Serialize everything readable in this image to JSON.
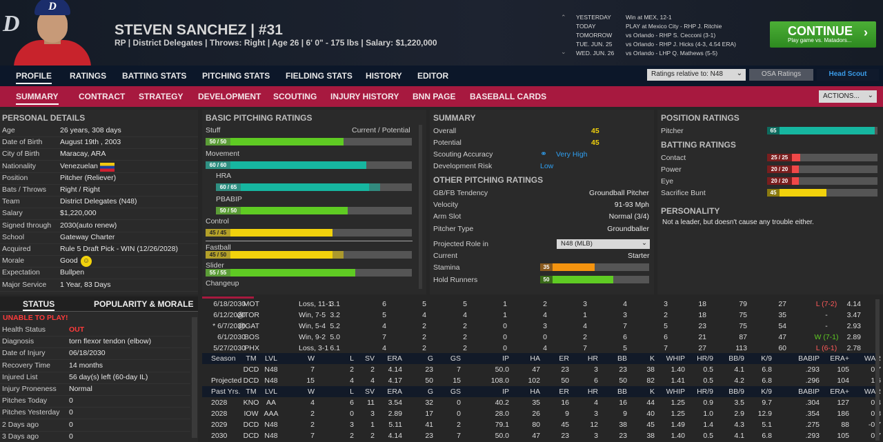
{
  "header": {
    "logo": "D",
    "cap_letter": "D",
    "name": "STEVEN SANCHEZ  |  #31",
    "subtitle": "RP | District Delegates | Throws: Right | Age 26 | 6' 0\" - 175 lbs | Salary: $1,220,000",
    "schedule": [
      {
        "day": "YESTERDAY",
        "text": "Win at MEX, 12-1"
      },
      {
        "day": "TODAY",
        "text": "PLAY at Mexico City - RHP J. Ritchie"
      },
      {
        "day": "TOMORROW",
        "text": "vs Orlando - RHP S. Cecconi (3-1)"
      },
      {
        "day": "TUE. JUN. 25",
        "text": "vs Orlando - RHP J. Hicks (4-3, 4.54 ERA)"
      },
      {
        "day": "WED. JUN. 26",
        "text": "vs Orlando - LHP Q. Mathews (5-5)"
      }
    ],
    "continue_label": "CONTINUE",
    "continue_sub": "Play game vs. Matadors...",
    "continue_color": "#3a9c2a"
  },
  "nav_main": {
    "tabs": [
      "PROFILE",
      "RATINGS",
      "BATTING STATS",
      "PITCHING STATS",
      "FIELDING STATS",
      "HISTORY",
      "EDITOR"
    ],
    "active": "PROFILE",
    "ratings_relative": "Ratings relative to: N48",
    "osa": "OSA Ratings",
    "head_scout": "Head Scout"
  },
  "nav_sub": {
    "tabs": [
      "SUMMARY",
      "CONTRACT",
      "STRATEGY",
      "DEVELOPMENT",
      "SCOUTING",
      "INJURY HISTORY",
      "BNN PAGE",
      "BASEBALL CARDS"
    ],
    "active": "SUMMARY",
    "actions": "ACTIONS...",
    "accent": "#a7193f"
  },
  "personal": {
    "title": "PERSONAL DETAILS",
    "rows": [
      {
        "label": "Age",
        "value": "26 years, 308 days"
      },
      {
        "label": "Date of Birth",
        "value": "August 19th , 2003"
      },
      {
        "label": "City of Birth",
        "value": "Maracay, ARA"
      },
      {
        "label": "Nationality",
        "value": "Venezuelan"
      },
      {
        "label": "Position",
        "value": "Pitcher (Reliever)"
      },
      {
        "label": "Bats / Throws",
        "value": "Right / Right"
      },
      {
        "label": "Team",
        "value": "District Delegates (N48)"
      },
      {
        "label": "Salary",
        "value": "$1,220,000"
      },
      {
        "label": "Signed through",
        "value": "2030(auto renew)"
      },
      {
        "label": "School",
        "value": "Gateway Charter"
      },
      {
        "label": "Acquired",
        "value": "Rule 5 Draft Pick - WIN (12/26/2028)"
      },
      {
        "label": "Morale",
        "value": "Good"
      },
      {
        "label": "Expectation",
        "value": "Bullpen"
      },
      {
        "label": "Major Service",
        "value": "1 Year, 83 Days"
      }
    ]
  },
  "status": {
    "tab_status": "STATUS",
    "tab_popularity": "POPULARITY & MORALE",
    "alert": "UNABLE TO PLAY!",
    "rows": [
      {
        "label": "Health Status",
        "value": "OUT"
      },
      {
        "label": "Diagnosis",
        "value": "torn flexor tendon (elbow)"
      },
      {
        "label": "Date of Injury",
        "value": "06/18/2030"
      },
      {
        "label": "Recovery Time",
        "value": "14 months"
      },
      {
        "label": "Injured List",
        "value": "56 day(s) left (60-day IL)"
      },
      {
        "label": "Injury Proneness",
        "value": "Normal"
      },
      {
        "label": "Pitches Today",
        "value": "0"
      },
      {
        "label": "Pitches Yesterday",
        "value": "0"
      },
      {
        "label": "2 Days ago",
        "value": "0"
      },
      {
        "label": "3 Days ago",
        "value": "0"
      }
    ]
  },
  "basic_pitching": {
    "title": "BASIC PITCHING RATINGS",
    "cur_pot_label": "Current / Potential",
    "ratings": [
      {
        "name": "Stuff",
        "label": "50 / 50",
        "current": 50,
        "potential": 50,
        "color": "#5fcb23"
      },
      {
        "name": "Movement",
        "label": "60 / 60",
        "current": 60,
        "potential": 60,
        "color": "#16b6a0"
      },
      {
        "name": "HRA",
        "label": "60 / 65",
        "current": 60,
        "potential": 65,
        "color": "#16b6a0"
      },
      {
        "name": "PBABIP",
        "label": "50 / 50",
        "current": 50,
        "potential": 50,
        "color": "#5fcb23"
      },
      {
        "name": "Control",
        "label": "45 / 45",
        "current": 45,
        "potential": 45,
        "color": "#f2d20c"
      },
      {
        "name": "Fastball",
        "label": "45 / 50",
        "current": 45,
        "potential": 50,
        "color": "#f2d20c"
      },
      {
        "name": "Slider",
        "label": "55 / 55",
        "current": 55,
        "potential": 55,
        "color": "#5fcb23"
      },
      {
        "name": "Changeup",
        "label": "",
        "current": 0,
        "potential": 0,
        "color": "#5fcb23"
      }
    ]
  },
  "summary": {
    "title": "SUMMARY",
    "overall_label": "Overall",
    "overall": "45",
    "potential_label": "Potential",
    "potential": "45",
    "scouting_label": "Scouting Accuracy",
    "scouting": "Very High",
    "devrisk_label": "Development Risk",
    "devrisk": "Low",
    "other_title": "OTHER PITCHING RATINGS",
    "other": [
      {
        "label": "GB/FB Tendency",
        "value": "Groundball Pitcher"
      },
      {
        "label": "Velocity",
        "value": "91-93 Mph"
      },
      {
        "label": "Arm Slot",
        "value": "Normal (3/4)"
      },
      {
        "label": "Pitcher Type",
        "value": "Groundballer"
      }
    ],
    "projected_label": "Projected Role in",
    "projected_select": "N48 (MLB)",
    "current_label": "Current",
    "current_value": "Starter",
    "stamina_label": "Stamina",
    "stamina": 35,
    "stamina_text": "35",
    "holdrunners_label": "Hold Runners",
    "holdrunners": 50,
    "holdrunners_text": "50"
  },
  "position": {
    "title": "POSITION RATINGS",
    "pitcher_label": "Pitcher",
    "pitcher": 65,
    "pitcher_text": "65",
    "batting_title": "BATTING RATINGS",
    "batting": [
      {
        "name": "Contact",
        "label": "25 / 25",
        "value": 25
      },
      {
        "name": "Power",
        "label": "20 / 20",
        "value": 20
      },
      {
        "name": "Eye",
        "label": "20 / 20",
        "value": 20
      },
      {
        "name": "Sacrifice Bunt",
        "label": "45",
        "value": 45
      }
    ],
    "personality_title": "PERSONALITY",
    "personality": "Not a leader, but doesn't cause any trouble either."
  },
  "game_log": [
    [
      "6/18/2030",
      "MOT",
      "Loss, 11-1",
      "3.1",
      "6",
      "5",
      "5",
      "1",
      "2",
      "3",
      "4",
      "3",
      "18",
      "79",
      "27",
      "L (7-2)",
      "4.14"
    ],
    [
      "6/12/2030",
      "@TOR",
      "Win, 7-5",
      "3.2",
      "5",
      "4",
      "4",
      "1",
      "4",
      "1",
      "3",
      "2",
      "18",
      "75",
      "35",
      "-",
      "3.47"
    ],
    [
      "* 6/7/2030",
      "@GAT",
      "Win, 5-4",
      "5.2",
      "4",
      "2",
      "2",
      "0",
      "3",
      "4",
      "7",
      "5",
      "23",
      "75",
      "54",
      "-",
      "2.93"
    ],
    [
      "6/1/2030",
      "BOS",
      "Win, 9-2",
      "5.0",
      "7",
      "2",
      "2",
      "0",
      "0",
      "2",
      "6",
      "6",
      "21",
      "87",
      "47",
      "W (7-1)",
      "2.89"
    ],
    [
      "5/27/2030",
      "PHX",
      "Loss, 3-1",
      "6.1",
      "4",
      "2",
      "2",
      "0",
      "4",
      "7",
      "5",
      "7",
      "27",
      "113",
      "60",
      "L (6-1)",
      "2.78"
    ]
  ],
  "season_header": [
    "Season",
    "TM",
    "LVL",
    "W",
    "L",
    "SV",
    "ERA",
    "G",
    "GS",
    "IP",
    "HA",
    "ER",
    "HR",
    "BB",
    "K",
    "WHIP",
    "HR/9",
    "BB/9",
    "K/9",
    "BABIP",
    "ERA+",
    "WAR"
  ],
  "season_rows": [
    [
      "",
      "DCD",
      "N48",
      "7",
      "2",
      "2",
      "4.14",
      "23",
      "7",
      "50.0",
      "47",
      "23",
      "3",
      "23",
      "38",
      "1.40",
      "0.5",
      "4.1",
      "6.8",
      ".293",
      "105",
      "0.7"
    ],
    [
      "Projected",
      "DCD",
      "N48",
      "15",
      "4",
      "4",
      "4.17",
      "50",
      "15",
      "108.0",
      "102",
      "50",
      "6",
      "50",
      "82",
      "1.41",
      "0.5",
      "4.2",
      "6.8",
      ".296",
      "104",
      "1.6"
    ]
  ],
  "past_header": [
    "Past Yrs.",
    "TM",
    "LVL",
    "W",
    "L",
    "SV",
    "ERA",
    "G",
    "GS",
    "IP",
    "HA",
    "ER",
    "HR",
    "BB",
    "K",
    "WHIP",
    "HR/9",
    "BB/9",
    "K/9",
    "BABIP",
    "ERA+",
    "WAR"
  ],
  "past_rows": [
    [
      "2028",
      "KNO",
      "AA",
      "4",
      "6",
      "11",
      "3.54",
      "32",
      "0",
      "40.2",
      "35",
      "16",
      "4",
      "16",
      "44",
      "1.25",
      "0.9",
      "3.5",
      "9.7",
      ".304",
      "127",
      "0.4"
    ],
    [
      "2028",
      "IOW",
      "AAA",
      "2",
      "0",
      "3",
      "2.89",
      "17",
      "0",
      "28.0",
      "26",
      "9",
      "3",
      "9",
      "40",
      "1.25",
      "1.0",
      "2.9",
      "12.9",
      ".354",
      "186",
      "0.8"
    ],
    [
      "2029",
      "DCD",
      "N48",
      "2",
      "3",
      "1",
      "5.11",
      "41",
      "2",
      "79.1",
      "80",
      "45",
      "12",
      "38",
      "45",
      "1.49",
      "1.4",
      "4.3",
      "5.1",
      ".275",
      "88",
      "-0.7"
    ],
    [
      "2030",
      "DCD",
      "N48",
      "7",
      "2",
      "2",
      "4.14",
      "23",
      "7",
      "50.0",
      "47",
      "23",
      "3",
      "23",
      "38",
      "1.40",
      "0.5",
      "4.1",
      "6.8",
      ".293",
      "105",
      "0.7"
    ]
  ]
}
